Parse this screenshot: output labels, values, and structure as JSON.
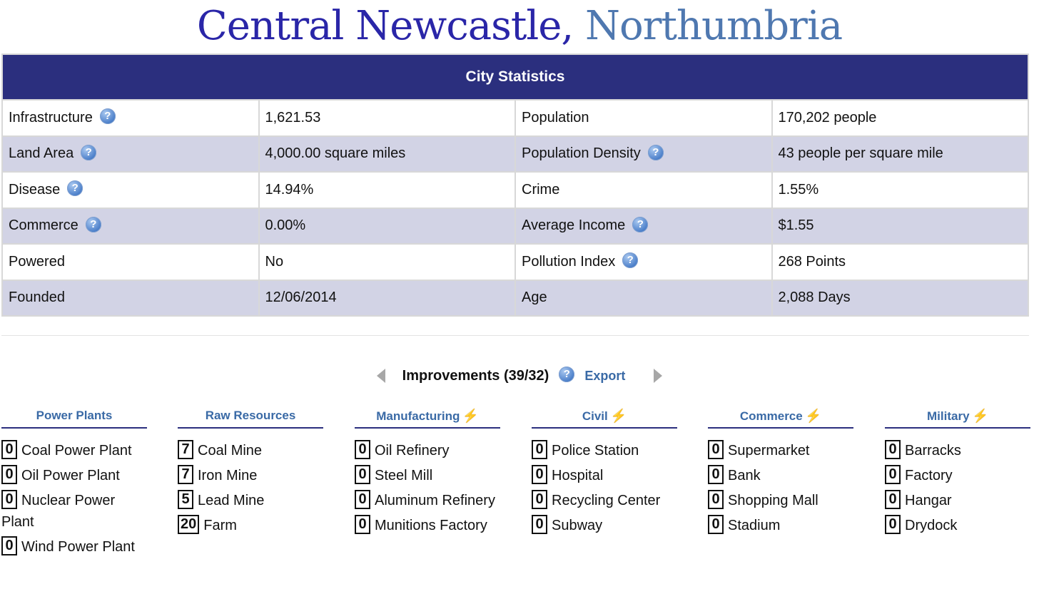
{
  "title": {
    "city": "Central Newcastle,",
    "region": "Northumbria"
  },
  "stats": {
    "header": "City Statistics",
    "rows": [
      {
        "label1": "Infrastructure",
        "value1": "1,621.53",
        "label2": "Population",
        "value2": "170,202 people"
      },
      {
        "label1": "Land Area",
        "value1": "4,000.00 square miles",
        "label2": "Population Density",
        "value2": "43 people per square mile"
      },
      {
        "label1": "Disease",
        "value1": "14.94%",
        "label2": "Crime",
        "value2": "1.55%"
      },
      {
        "label1": "Commerce",
        "value1": "0.00%",
        "label2": "Average Income",
        "value2": "$1.55"
      },
      {
        "label1": "Powered",
        "value1": "No",
        "label2": "Pollution Index",
        "value2": "268 Points"
      },
      {
        "label1": "Founded",
        "value1": "12/06/2014",
        "label2": "Age",
        "value2": "2,088 Days"
      }
    ],
    "help_glyph": "?"
  },
  "improvements": {
    "title": "Improvements (39/32)",
    "export": "Export",
    "columns": [
      {
        "heading": "Power Plants",
        "items": [
          {
            "count": "0",
            "name": "Coal Power Plant"
          },
          {
            "count": "0",
            "name": "Oil Power Plant"
          },
          {
            "count": "0",
            "name": "Nuclear Power Plant"
          },
          {
            "count": "0",
            "name": "Wind Power Plant"
          }
        ]
      },
      {
        "heading": "Raw Resources",
        "items": [
          {
            "count": "7",
            "name": "Coal Mine"
          },
          {
            "count": "7",
            "name": "Iron Mine"
          },
          {
            "count": "5",
            "name": "Lead Mine"
          },
          {
            "count": "20",
            "name": "Farm"
          }
        ]
      },
      {
        "heading": "Manufacturing",
        "items": [
          {
            "count": "0",
            "name": "Oil Refinery"
          },
          {
            "count": "0",
            "name": "Steel Mill"
          },
          {
            "count": "0",
            "name": "Aluminum Refinery"
          },
          {
            "count": "0",
            "name": "Munitions Factory"
          }
        ]
      },
      {
        "heading": "Civil",
        "items": [
          {
            "count": "0",
            "name": "Police Station"
          },
          {
            "count": "0",
            "name": "Hospital"
          },
          {
            "count": "0",
            "name": "Recycling Center"
          },
          {
            "count": "0",
            "name": "Subway"
          }
        ]
      },
      {
        "heading": "Commerce",
        "items": [
          {
            "count": "0",
            "name": "Supermarket"
          },
          {
            "count": "0",
            "name": "Bank"
          },
          {
            "count": "0",
            "name": "Shopping Mall"
          },
          {
            "count": "0",
            "name": "Stadium"
          }
        ]
      },
      {
        "heading": "Military",
        "items": [
          {
            "count": "0",
            "name": "Barracks"
          },
          {
            "count": "0",
            "name": "Factory"
          },
          {
            "count": "0",
            "name": "Hangar"
          },
          {
            "count": "0",
            "name": "Drydock"
          }
        ]
      }
    ]
  },
  "colors": {
    "header_bg": "#2b2f7e",
    "alt_row": "#d2d3e5",
    "city_title": "#2a26a8",
    "region_title": "#4f78b0",
    "link": "#3a6aa6",
    "bolt": "#f2b531"
  },
  "icons": {
    "help": "help-icon",
    "prev": "arrow-left-icon",
    "next": "arrow-right-icon",
    "power": "lightning-bolt-icon"
  }
}
